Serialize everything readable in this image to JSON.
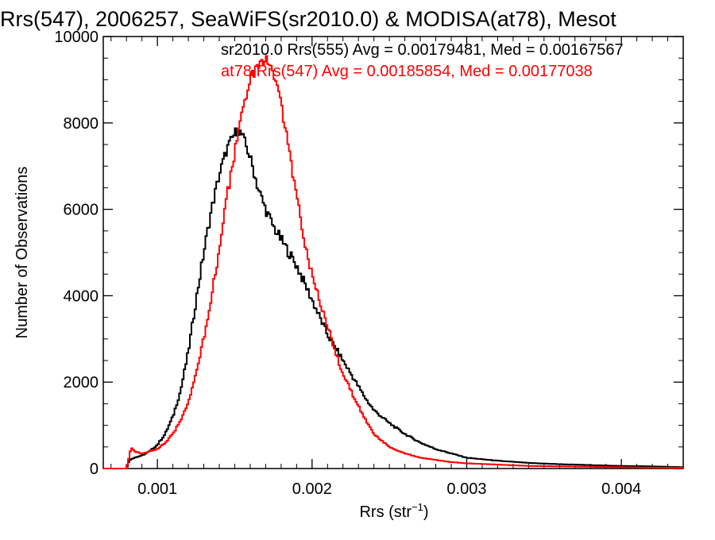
{
  "chart_data": {
    "type": "line",
    "title": "Rrs(547), 2006257, SeaWiFS(sr2010.0) & MODISA(at78), Mesot",
    "xlabel_main": "Rrs (str",
    "xlabel_sup": "−1",
    "xlabel_end": ")",
    "ylabel": "Number of Observations",
    "xlim": [
      0.00065,
      0.0044
    ],
    "ylim": [
      0,
      10000
    ],
    "xticks": [
      0.001,
      0.002,
      0.003,
      0.004
    ],
    "xtick_labels": [
      "0.001",
      "0.002",
      "0.003",
      "0.004"
    ],
    "yticks": [
      0,
      2000,
      4000,
      6000,
      8000,
      10000
    ],
    "ytick_labels": [
      "0",
      "2000",
      "4000",
      "6000",
      "8000",
      "10000"
    ],
    "grid": false,
    "legend_position": "top-right",
    "series": [
      {
        "name": "sr2010.0 Rrs(555) Avg = 0.00179481, Med = 0.00167567",
        "color": "#000000",
        "x": [
          0.00065,
          0.0007,
          0.00075,
          0.0008,
          0.00082,
          0.00085,
          0.0009,
          0.00095,
          0.001,
          0.00105,
          0.0011,
          0.00115,
          0.0012,
          0.00125,
          0.0013,
          0.00135,
          0.0014,
          0.00145,
          0.0015,
          0.00152,
          0.00155,
          0.00158,
          0.0016,
          0.00165,
          0.0017,
          0.00175,
          0.0018,
          0.00185,
          0.0019,
          0.00195,
          0.002,
          0.00205,
          0.0021,
          0.00215,
          0.0022,
          0.00225,
          0.0023,
          0.00235,
          0.0024,
          0.0025,
          0.0026,
          0.0027,
          0.0028,
          0.0029,
          0.003,
          0.0032,
          0.0034,
          0.0036,
          0.0038,
          0.004,
          0.0042,
          0.0044
        ],
        "values": [
          0,
          0,
          0,
          0,
          200,
          250,
          300,
          400,
          550,
          800,
          1200,
          1800,
          2700,
          3900,
          5000,
          6000,
          6800,
          7400,
          7750,
          7850,
          7700,
          7400,
          7200,
          6500,
          6000,
          5600,
          5300,
          5000,
          4700,
          4300,
          3900,
          3500,
          3100,
          2800,
          2500,
          2200,
          1900,
          1600,
          1350,
          1050,
          800,
          600,
          450,
          350,
          250,
          180,
          130,
          100,
          80,
          60,
          50,
          30
        ]
      },
      {
        "name": "at78 Rrs(547) Avg = 0.00185854, Med = 0.00177038",
        "color": "#ff0000",
        "x": [
          0.00065,
          0.0007,
          0.00075,
          0.0008,
          0.00082,
          0.00083,
          0.00085,
          0.0009,
          0.00095,
          0.001,
          0.00105,
          0.0011,
          0.00115,
          0.0012,
          0.00125,
          0.0013,
          0.00135,
          0.0014,
          0.00145,
          0.0015,
          0.00155,
          0.0016,
          0.00165,
          0.0017,
          0.00172,
          0.00175,
          0.0018,
          0.00185,
          0.0019,
          0.00195,
          0.002,
          0.00205,
          0.0021,
          0.00215,
          0.0022,
          0.00225,
          0.0023,
          0.00235,
          0.0024,
          0.0025,
          0.0026,
          0.0027,
          0.0028,
          0.0029,
          0.003,
          0.0032,
          0.0034,
          0.0036,
          0.0038,
          0.004,
          0.0042,
          0.0044
        ],
        "values": [
          0,
          0,
          0,
          0,
          300,
          500,
          400,
          350,
          400,
          450,
          600,
          800,
          1100,
          1500,
          2200,
          3000,
          4000,
          5100,
          6300,
          7300,
          8300,
          9000,
          9300,
          9450,
          9400,
          9200,
          8400,
          7400,
          6300,
          5300,
          4500,
          3900,
          3300,
          2700,
          2200,
          1800,
          1450,
          1100,
          800,
          500,
          350,
          250,
          200,
          150,
          120,
          90,
          60,
          50,
          40,
          30,
          20,
          15
        ]
      }
    ]
  }
}
